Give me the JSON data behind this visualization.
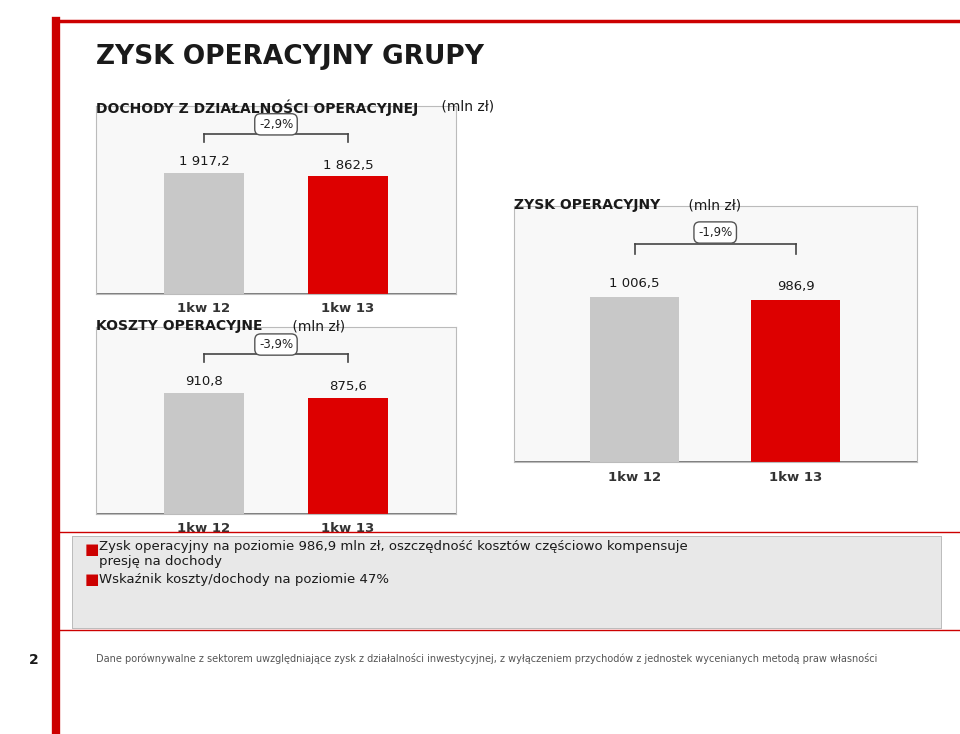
{
  "title": "ZYSK OPERACYJNY GRUPY",
  "bg_color": "#ffffff",
  "left_bar_color": "#c8c8c8",
  "right_bar_color": "#dd0000",
  "border_color": "#bbbbbb",
  "chart_bg": "#f8f8f8",
  "section1_title_bold": "DOCHODY Z DZIAŁALNOŚCI OPERACYJNEJ",
  "section1_title_normal": " (mln zł)",
  "section2_title_bold": "KOSZTY OPERACYJNE",
  "section2_title_normal": " (mln zł)",
  "section3_title_bold": "ZYSK OPERACYJNY",
  "section3_title_normal": " (mln zł)",
  "dochody_values": [
    1917.2,
    1862.5
  ],
  "koszty_values": [
    910.8,
    875.6
  ],
  "zysk_values": [
    1006.5,
    986.9
  ],
  "dochody_change": "-2,9%",
  "koszty_change": "-3,9%",
  "zysk_change": "-1,9%",
  "dochody_labels": [
    "1 917,2",
    "1 862,5"
  ],
  "koszty_labels": [
    "910,8",
    "875,6"
  ],
  "zysk_labels": [
    "1 006,5",
    "986,9"
  ],
  "x_labels": [
    "1kw 12",
    "1kw 13"
  ],
  "bullet1": "Zysk operacyjny na poziomie 986,9 mln zł, oszczędność kosztów częściowo kompensuje",
  "bullet1b": "presję na dochody",
  "bullet2": "Wskaźnik koszty/dochody na poziomie 47%",
  "footnote": "Dane porównywalne z sektorem uwzględniające zysk z działalności inwestycyjnej, z wyłączeniem przychodów z jednostek wycenianych metodą praw własności",
  "page_num": "2",
  "title_color": "#1a1a1a",
  "accent_red": "#cc0000",
  "section_title_color": "#1a1a1a"
}
